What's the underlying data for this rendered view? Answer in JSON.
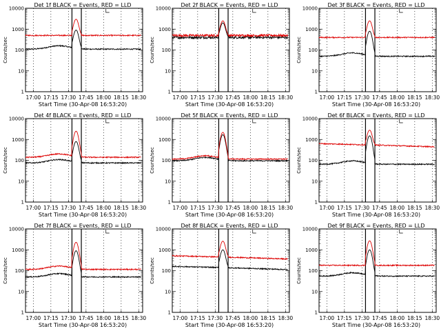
{
  "chart_data": {
    "type": "line",
    "layout": "3x3 grid of panels",
    "xlabel": "Start Time (30-Apr-08 16:53:20)",
    "ylabel": "Counts/sec",
    "x_tick_labels": [
      "17:00",
      "17:15",
      "17:30",
      "17:45",
      "18:00",
      "18:15",
      "18:30"
    ],
    "x_range": [
      "16:53:20",
      "18:33:20"
    ],
    "y_scale": "log",
    "ylim": [
      1,
      10000
    ],
    "y_tick_labels": [
      "1",
      "10",
      "100",
      "1000",
      "10000"
    ],
    "vertical_markers": [
      "17:33",
      "17:41"
    ],
    "panels": [
      {
        "title": "Det 1f BLACK = Events, RED = LLD",
        "series": [
          {
            "color": "#000000",
            "baseline": 110,
            "peak": 900,
            "variation": "hump"
          },
          {
            "color": "#dd0000",
            "baseline": 500,
            "peak": 3000,
            "variation": "flat"
          }
        ]
      },
      {
        "title": "Det 2f BLACK = Events, RED = LLD",
        "series": [
          {
            "color": "#000000",
            "baseline": 400,
            "peak": 2000,
            "variation": "flat-noisy"
          },
          {
            "color": "#dd0000",
            "baseline": 500,
            "peak": 2500,
            "variation": "flat-noisy"
          }
        ]
      },
      {
        "title": "Det 3f BLACK = Events, RED = LLD",
        "series": [
          {
            "color": "#000000",
            "baseline": 50,
            "peak": 800,
            "variation": "hump"
          },
          {
            "color": "#dd0000",
            "baseline": 400,
            "peak": 2500,
            "variation": "flat"
          }
        ]
      },
      {
        "title": "Det 4f BLACK = Events, RED = LLD",
        "series": [
          {
            "color": "#000000",
            "baseline": 75,
            "peak": 800,
            "variation": "hump"
          },
          {
            "color": "#dd0000",
            "baseline": 140,
            "peak": 2500,
            "variation": "hump"
          }
        ]
      },
      {
        "title": "Det 5f BLACK = Events, RED = LLD",
        "series": [
          {
            "color": "#000000",
            "baseline": 95,
            "peak": 1700,
            "variation": "hump"
          },
          {
            "color": "#dd0000",
            "baseline": 115,
            "peak": 2200,
            "variation": "hump"
          }
        ]
      },
      {
        "title": "Det 6f BLACK = Events, RED = LLD",
        "series": [
          {
            "color": "#000000",
            "baseline": 65,
            "peak": 1500,
            "variation": "hump"
          },
          {
            "color": "#dd0000",
            "baseline": 550,
            "peak": 2800,
            "variation": "decline"
          }
        ]
      },
      {
        "title": "Det 7f BLACK = Events, RED = LLD",
        "series": [
          {
            "color": "#000000",
            "baseline": 50,
            "peak": 900,
            "variation": "hump"
          },
          {
            "color": "#dd0000",
            "baseline": 115,
            "peak": 2300,
            "variation": "hump"
          }
        ]
      },
      {
        "title": "Det 8f BLACK = Events, RED = LLD",
        "series": [
          {
            "color": "#000000",
            "baseline": 140,
            "peak": 1000,
            "variation": "decline"
          },
          {
            "color": "#dd0000",
            "baseline": 450,
            "peak": 2600,
            "variation": "decline"
          }
        ]
      },
      {
        "title": "Det 9f BLACK = Events, RED = LLD",
        "series": [
          {
            "color": "#000000",
            "baseline": 55,
            "peak": 1000,
            "variation": "hump"
          },
          {
            "color": "#dd0000",
            "baseline": 180,
            "peak": 2700,
            "variation": "flat"
          }
        ]
      }
    ]
  }
}
